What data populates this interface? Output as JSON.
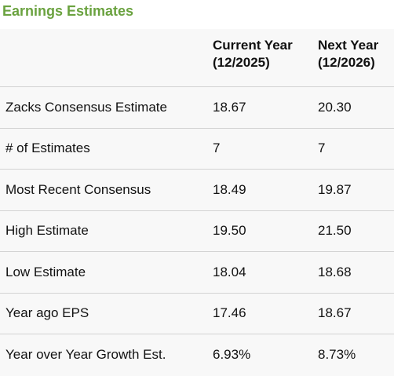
{
  "section": {
    "title": "Earnings Estimates",
    "title_color": "#6aa23f"
  },
  "table": {
    "headers": {
      "label": "",
      "current_year": "Current Year\n(12/2025)",
      "next_year": "Next Year\n(12/2026)"
    },
    "rows": [
      {
        "label": "Zacks Consensus Estimate",
        "current": "18.67",
        "next": "20.30"
      },
      {
        "label": "# of Estimates",
        "current": "7",
        "next": "7"
      },
      {
        "label": "Most Recent Consensus",
        "current": "18.49",
        "next": "19.87"
      },
      {
        "label": "High Estimate",
        "current": "19.50",
        "next": "21.50"
      },
      {
        "label": "Low Estimate",
        "current": "18.04",
        "next": "18.68"
      },
      {
        "label": "Year ago EPS",
        "current": "17.46",
        "next": "18.67"
      },
      {
        "label": "Year over Year Growth Est.",
        "current": "6.93%",
        "next": "8.73%"
      }
    ]
  }
}
